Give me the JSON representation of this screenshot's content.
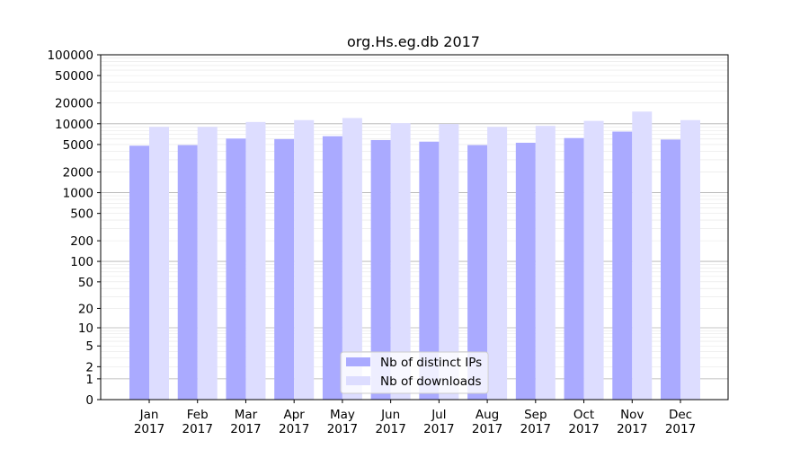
{
  "chart_data": {
    "type": "bar",
    "title": "org.Hs.eg.db 2017",
    "xlabel": "",
    "ylabel": "",
    "y_scale": "symlog",
    "ylim": [
      0,
      100000
    ],
    "y_ticks": [
      0,
      1,
      2,
      5,
      10,
      20,
      50,
      100,
      200,
      500,
      1000,
      2000,
      5000,
      10000,
      20000,
      50000,
      100000
    ],
    "y_tick_labels": [
      "0",
      "1",
      "2",
      "5",
      "10",
      "20",
      "50",
      "100",
      "200",
      "500",
      "1000",
      "2000",
      "5000",
      "10000",
      "20000",
      "50000",
      "100000"
    ],
    "grid": true,
    "legend_position": "bottom-center",
    "categories": [
      {
        "month": "Jan",
        "year": "2017"
      },
      {
        "month": "Feb",
        "year": "2017"
      },
      {
        "month": "Mar",
        "year": "2017"
      },
      {
        "month": "Apr",
        "year": "2017"
      },
      {
        "month": "May",
        "year": "2017"
      },
      {
        "month": "Jun",
        "year": "2017"
      },
      {
        "month": "Jul",
        "year": "2017"
      },
      {
        "month": "Aug",
        "year": "2017"
      },
      {
        "month": "Sep",
        "year": "2017"
      },
      {
        "month": "Oct",
        "year": "2017"
      },
      {
        "month": "Nov",
        "year": "2017"
      },
      {
        "month": "Dec",
        "year": "2017"
      }
    ],
    "series": [
      {
        "name": "Nb of distinct IPs",
        "color": "#aaaaff",
        "values": [
          4800,
          4900,
          6100,
          6000,
          6600,
          5800,
          5500,
          4900,
          5300,
          6200,
          7700,
          5900
        ]
      },
      {
        "name": "Nb of downloads",
        "color": "#ddddff",
        "values": [
          9000,
          9000,
          10600,
          11300,
          12100,
          10200,
          9900,
          9000,
          9300,
          11000,
          15000,
          11300
        ]
      }
    ]
  }
}
